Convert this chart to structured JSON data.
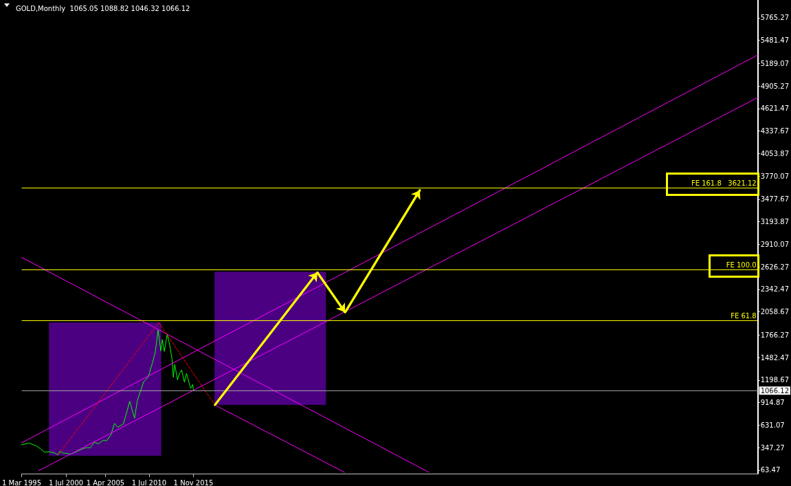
{
  "chart_data": {
    "type": "line",
    "title": "GOLD,Monthly  1065.05 1088.82 1046.32 1066.12",
    "xlim": [
      "1995-03",
      "2083-10"
    ],
    "xticks": [
      {
        "value": "1995-03-01",
        "label": "1 Mar 1995"
      },
      {
        "value": "2000-07-01",
        "label": "1 Jul 2000"
      },
      {
        "value": "2005-04-01",
        "label": "1 Apr 2005"
      },
      {
        "value": "2010-07-01",
        "label": "1 Jul 2010"
      },
      {
        "value": "2015-11-01",
        "label": "1 Nov 2015"
      }
    ],
    "ylim": [
      20,
      5990
    ],
    "yticks": [
      63.47,
      347.27,
      631.07,
      914.87,
      1198.67,
      1482.47,
      1766.27,
      2058.67,
      2342.47,
      2626.27,
      2910.07,
      3193.87,
      3477.67,
      3770.07,
      4053.87,
      4337.67,
      4621.47,
      4905.27,
      5189.07,
      5481.47,
      5765.27
    ],
    "grid": false,
    "marker": "none",
    "series": [
      {
        "type": "area",
        "color": "#4b0082",
        "x": [
          "1998-07",
          "1998-07",
          "2011-12",
          "2011-12"
        ],
        "values": [
          250,
          1920,
          1920,
          250
        ]
      },
      {
        "type": "area",
        "color": "#4b0082",
        "x": [
          "2018-06",
          "2018-06",
          "2031-10",
          "2031-10"
        ],
        "values": [
          890,
          2560,
          2560,
          890
        ]
      },
      {
        "type": "line",
        "color": "#00ff00",
        "x": [
          "1995-03",
          "1996-02",
          "1996-12",
          "1997-06",
          "1997-12",
          "1998-06",
          "1999-03",
          "1999-07",
          "1999-10",
          "2000-03",
          "2000-07",
          "2001-02",
          "2001-09",
          "2002-05",
          "2002-12",
          "2003-06",
          "2003-12",
          "2004-06",
          "2004-12",
          "2005-06",
          "2005-12",
          "2006-05",
          "2006-10",
          "2007-06",
          "2007-12",
          "2008-03",
          "2008-10",
          "2009-02",
          "2009-11",
          "2010-06",
          "2010-12",
          "2011-04",
          "2011-08",
          "2011-12",
          "2012-02",
          "2012-05",
          "2012-09",
          "2012-12",
          "2013-04",
          "2013-06",
          "2013-08",
          "2013-12",
          "2014-03",
          "2014-06",
          "2014-10",
          "2015-01",
          "2015-07",
          "2015-10",
          "2015-11"
        ],
        "values": [
          385,
          405,
          369,
          334,
          290,
          296,
          280,
          255,
          300,
          278,
          277,
          266,
          293,
          326,
          347,
          346,
          416,
          395,
          438,
          437,
          513,
          653,
          604,
          650,
          834,
          933,
          718,
          943,
          1175,
          1244,
          1421,
          1556,
          1828,
          1566,
          1711,
          1560,
          1772,
          1675,
          1472,
          1234,
          1396,
          1202,
          1284,
          1327,
          1172,
          1283,
          1095,
          1142,
          1066
        ]
      },
      {
        "type": "line",
        "color": "#ff00ff",
        "x": [
          "1995-03",
          "2044-03"
        ],
        "values": [
          2745,
          37
        ]
      },
      {
        "type": "line",
        "color": "#ff00ff",
        "x": [
          "2018-06",
          "2034-01"
        ],
        "values": [
          885,
          37
        ]
      },
      {
        "type": "line",
        "color": "#ff00ff",
        "x": [
          "1995-03",
          "2083-10"
        ],
        "values": [
          409,
          5297
        ]
      },
      {
        "type": "line",
        "color": "#ff00ff",
        "x": [
          "1997-03",
          "2083-10"
        ],
        "values": [
          55,
          4761
        ]
      },
      {
        "type": "line",
        "color": "#ff0000",
        "line_style": "dashed",
        "x": [
          "1999-08",
          "2011-09",
          "2018-06"
        ],
        "values": [
          262,
          1923,
          885
        ]
      },
      {
        "type": "line",
        "color": "#ffff00",
        "x": [
          "2018-06",
          "2030-10",
          "2034-02",
          "2043-02"
        ],
        "values": [
          885,
          2555,
          2053,
          3593
        ]
      }
    ],
    "ref_lines": [
      {
        "axis": "y",
        "value": 1950,
        "label": "FE 61.8",
        "color": "#ffff00"
      },
      {
        "axis": "y",
        "value": 2590,
        "label": "FE 100.0",
        "color": "#ffff00"
      },
      {
        "axis": "y",
        "value": 3621.12,
        "label": "FE 161.8   3621.12",
        "color": "#ffff00"
      },
      {
        "axis": "y",
        "value": 1066.12,
        "label": "1066.12",
        "color": "#a0a0a0"
      }
    ]
  }
}
